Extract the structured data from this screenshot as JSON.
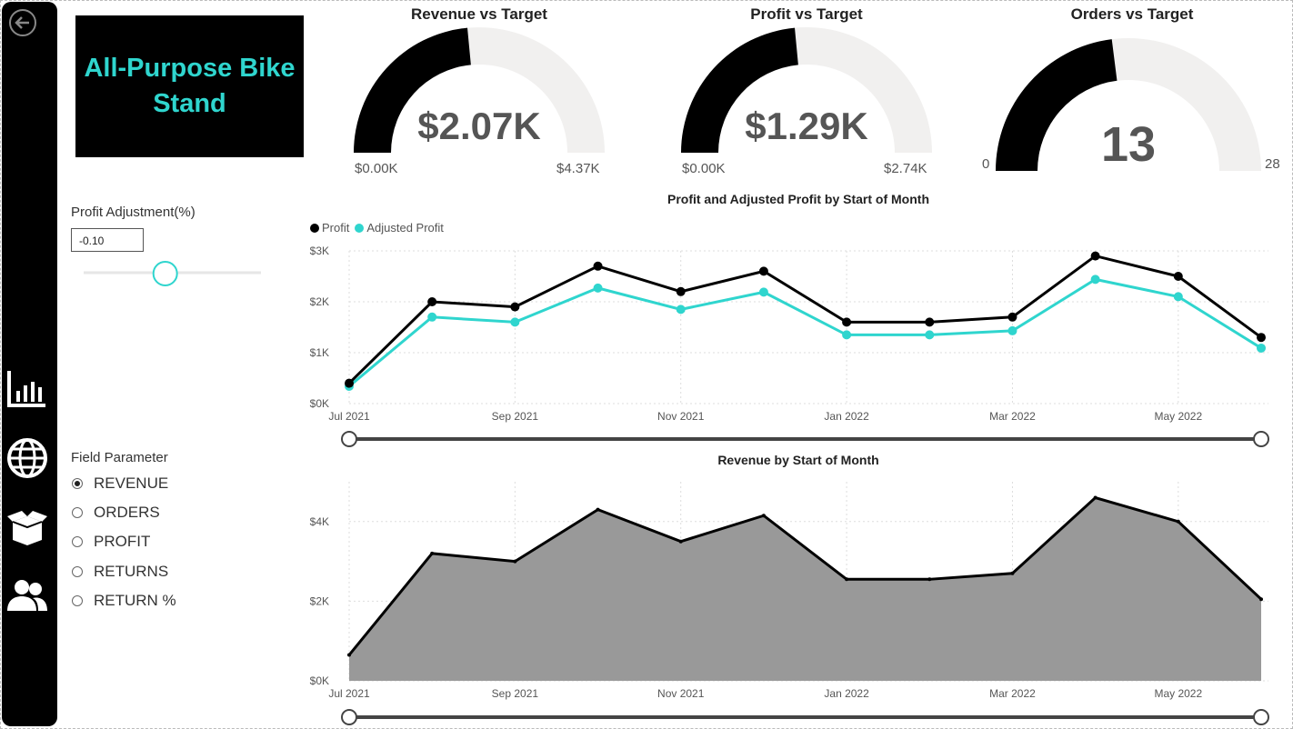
{
  "product": {
    "title": "All-Purpose Bike Stand"
  },
  "sidebar": {
    "items": [
      {
        "name": "back-icon"
      },
      {
        "name": "bar-chart-icon"
      },
      {
        "name": "globe-icon"
      },
      {
        "name": "box-icon"
      },
      {
        "name": "users-icon"
      }
    ]
  },
  "gauges": [
    {
      "title": "Revenue vs Target",
      "value_label": "$2.07K",
      "min_label": "$0.00K",
      "max_label": "$4.37K",
      "fraction": 0.47
    },
    {
      "title": "Profit vs Target",
      "value_label": "$1.29K",
      "min_label": "$0.00K",
      "max_label": "$2.74K",
      "fraction": 0.47
    },
    {
      "title": "Orders vs Target",
      "value_label": "13",
      "min_label": "0",
      "max_label": "28",
      "fraction": 0.46
    }
  ],
  "profit_adjustment": {
    "label": "Profit Adjustment(%)",
    "value": "-0.10",
    "slider_fraction": 0.46
  },
  "field_parameter": {
    "label": "Field Parameter",
    "options": [
      "REVENUE",
      "ORDERS",
      "PROFIT",
      "RETURNS",
      "RETURN %"
    ],
    "selected": "REVENUE"
  },
  "colors": {
    "accent": "#2fd5ce",
    "profit": "#000000",
    "area": "#999999",
    "gauge_track": "#f1f0ef"
  },
  "chart_data": [
    {
      "type": "line",
      "title": "Profit and Adjusted Profit by Start of Month",
      "x": [
        "Jul 2021",
        "Aug 2021",
        "Sep 2021",
        "Oct 2021",
        "Nov 2021",
        "Dec 2021",
        "Jan 2022",
        "Feb 2022",
        "Mar 2022",
        "Apr 2022",
        "May 2022",
        "Jun 2022"
      ],
      "x_tick_labels": [
        "Jul 2021",
        "Sep 2021",
        "Nov 2021",
        "Jan 2022",
        "Mar 2022",
        "May 2022"
      ],
      "y_tick_labels": [
        "$0K",
        "$1K",
        "$2K",
        "$3K"
      ],
      "series": [
        {
          "name": "Profit",
          "values": [
            400,
            2000,
            1900,
            2700,
            2200,
            2600,
            1600,
            1600,
            1700,
            2900,
            2500,
            1300
          ]
        },
        {
          "name": "Adjusted Profit",
          "values": [
            340,
            1700,
            1600,
            2270,
            1850,
            2190,
            1350,
            1350,
            1430,
            2440,
            2100,
            1090
          ]
        }
      ],
      "ylim": [
        0,
        3000
      ],
      "legend": "top-left"
    },
    {
      "type": "area",
      "title": "Revenue by Start of Month",
      "x": [
        "Jul 2021",
        "Aug 2021",
        "Sep 2021",
        "Oct 2021",
        "Nov 2021",
        "Dec 2021",
        "Jan 2022",
        "Feb 2022",
        "Mar 2022",
        "Apr 2022",
        "May 2022",
        "Jun 2022"
      ],
      "x_tick_labels": [
        "Jul 2021",
        "Sep 2021",
        "Nov 2021",
        "Jan 2022",
        "Mar 2022",
        "May 2022"
      ],
      "y_tick_labels": [
        "$0K",
        "$2K",
        "$4K"
      ],
      "series": [
        {
          "name": "Revenue",
          "values": [
            650,
            3200,
            3000,
            4300,
            3500,
            4150,
            2550,
            2550,
            2700,
            4600,
            4000,
            2050
          ]
        }
      ],
      "ylim": [
        0,
        5000
      ]
    }
  ]
}
